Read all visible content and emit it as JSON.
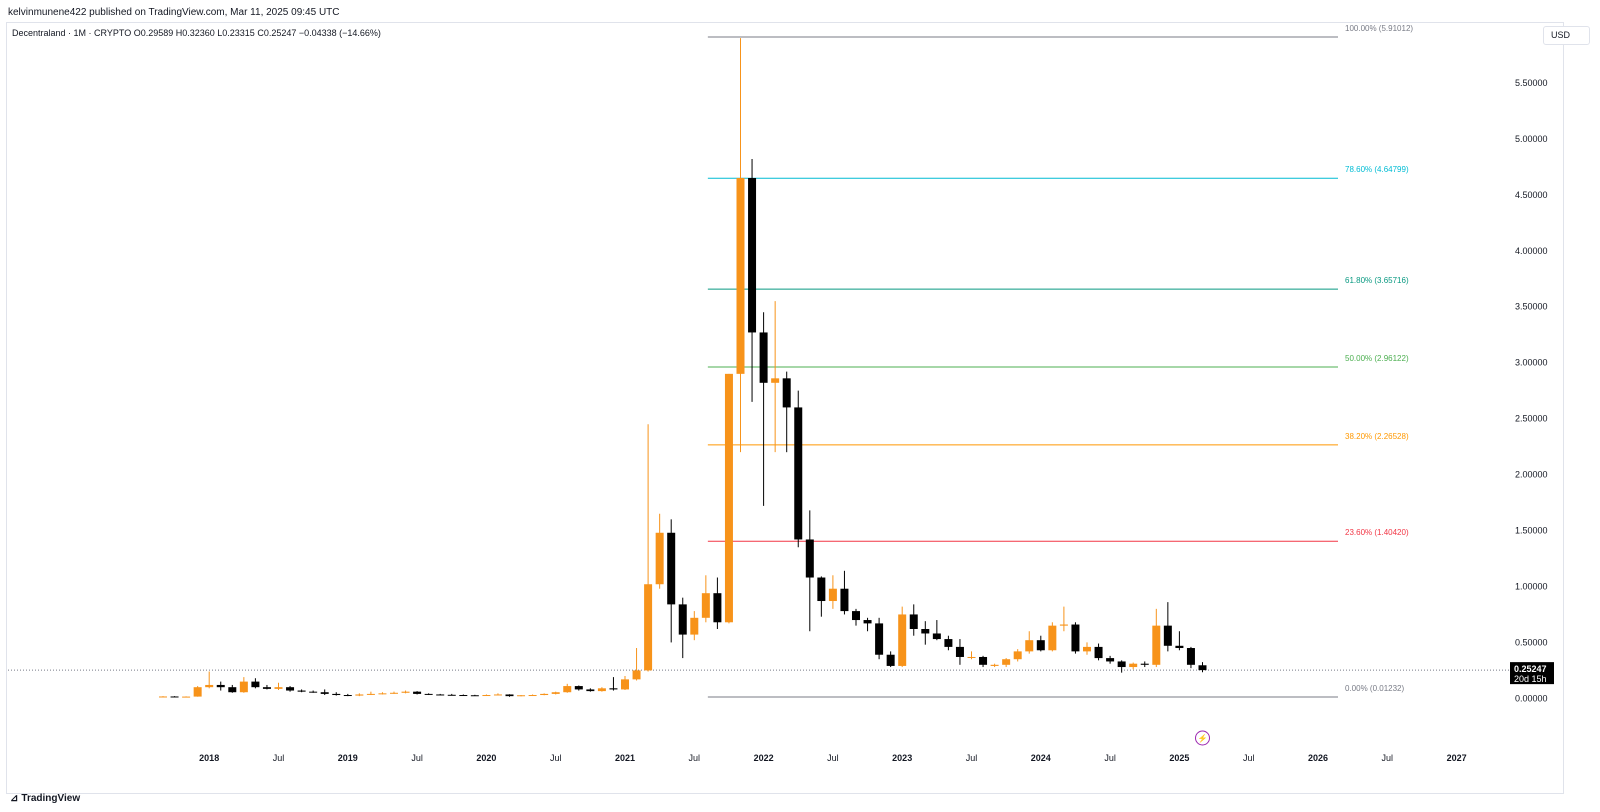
{
  "header": {
    "published_line": "kelvinmunene422 published on TradingView.com, Mar 11, 2025 09:45 UTC"
  },
  "symbol_bar": {
    "text": "Decentraland · 1M · CRYPTO  O0.29589  H0.32360  L0.23315  C0.25247  −0.04338 (−14.66%)"
  },
  "currency_button": "USD",
  "footer": {
    "brand": "TradingView",
    "logo_glyph": "⊿"
  },
  "price_tag": {
    "price": "0.25247",
    "countdown": "20d 15h"
  },
  "colors": {
    "up": "#f7931a",
    "down": "#000000",
    "fib_100": "#787b86",
    "fib_786": "#00bcd4",
    "fib_618": "#089981",
    "fib_50": "#4caf50",
    "fib_382": "#ff9800",
    "fib_236": "#f23645",
    "fib_0": "#787b86"
  },
  "chart_data": {
    "type": "candlestick",
    "title": "Decentraland · 1M · CRYPTO",
    "ylim": [
      -0.35,
      6.0
    ],
    "y_ticks": [
      "0.00000",
      "0.50000",
      "1.00000",
      "1.50000",
      "2.00000",
      "2.50000",
      "3.00000",
      "3.50000",
      "4.00000",
      "4.50000",
      "5.00000",
      "5.50000"
    ],
    "x_ticks": [
      "2018",
      "Jul",
      "2019",
      "Jul",
      "2020",
      "Jul",
      "2021",
      "Jul",
      "2022",
      "Jul",
      "2023",
      "Jul",
      "2024",
      "Jul",
      "2025",
      "Jul",
      "2026",
      "Jul",
      "2027"
    ],
    "x_start": "2017-09",
    "series": [
      {
        "candles": [
          {
            "t": "2017-09",
            "o": 0.015,
            "h": 0.02,
            "l": 0.01,
            "c": 0.017
          },
          {
            "t": "2017-10",
            "o": 0.017,
            "h": 0.02,
            "l": 0.012,
            "c": 0.014
          },
          {
            "t": "2017-11",
            "o": 0.014,
            "h": 0.018,
            "l": 0.012,
            "c": 0.016
          },
          {
            "t": "2017-12",
            "o": 0.016,
            "h": 0.11,
            "l": 0.015,
            "c": 0.1
          },
          {
            "t": "2018-01",
            "o": 0.1,
            "h": 0.24,
            "l": 0.09,
            "c": 0.12
          },
          {
            "t": "2018-02",
            "o": 0.12,
            "h": 0.15,
            "l": 0.07,
            "c": 0.1
          },
          {
            "t": "2018-03",
            "o": 0.1,
            "h": 0.12,
            "l": 0.05,
            "c": 0.055
          },
          {
            "t": "2018-04",
            "o": 0.055,
            "h": 0.19,
            "l": 0.05,
            "c": 0.15
          },
          {
            "t": "2018-05",
            "o": 0.15,
            "h": 0.18,
            "l": 0.09,
            "c": 0.1
          },
          {
            "t": "2018-06",
            "o": 0.1,
            "h": 0.12,
            "l": 0.08,
            "c": 0.085
          },
          {
            "t": "2018-07",
            "o": 0.085,
            "h": 0.14,
            "l": 0.075,
            "c": 0.1
          },
          {
            "t": "2018-08",
            "o": 0.1,
            "h": 0.11,
            "l": 0.06,
            "c": 0.07
          },
          {
            "t": "2018-09",
            "o": 0.07,
            "h": 0.08,
            "l": 0.055,
            "c": 0.06
          },
          {
            "t": "2018-10",
            "o": 0.06,
            "h": 0.07,
            "l": 0.05,
            "c": 0.055
          },
          {
            "t": "2018-11",
            "o": 0.055,
            "h": 0.08,
            "l": 0.03,
            "c": 0.04
          },
          {
            "t": "2018-12",
            "o": 0.04,
            "h": 0.055,
            "l": 0.025,
            "c": 0.03
          },
          {
            "t": "2019-01",
            "o": 0.03,
            "h": 0.04,
            "l": 0.02,
            "c": 0.025
          },
          {
            "t": "2019-02",
            "o": 0.025,
            "h": 0.045,
            "l": 0.02,
            "c": 0.035
          },
          {
            "t": "2019-03",
            "o": 0.035,
            "h": 0.06,
            "l": 0.03,
            "c": 0.04
          },
          {
            "t": "2019-04",
            "o": 0.04,
            "h": 0.055,
            "l": 0.035,
            "c": 0.045
          },
          {
            "t": "2019-05",
            "o": 0.045,
            "h": 0.06,
            "l": 0.04,
            "c": 0.05
          },
          {
            "t": "2019-06",
            "o": 0.05,
            "h": 0.07,
            "l": 0.045,
            "c": 0.06
          },
          {
            "t": "2019-07",
            "o": 0.06,
            "h": 0.065,
            "l": 0.035,
            "c": 0.04
          },
          {
            "t": "2019-08",
            "o": 0.04,
            "h": 0.045,
            "l": 0.03,
            "c": 0.035
          },
          {
            "t": "2019-09",
            "o": 0.035,
            "h": 0.04,
            "l": 0.03,
            "c": 0.032
          },
          {
            "t": "2019-10",
            "o": 0.032,
            "h": 0.04,
            "l": 0.028,
            "c": 0.03
          },
          {
            "t": "2019-11",
            "o": 0.03,
            "h": 0.035,
            "l": 0.025,
            "c": 0.028
          },
          {
            "t": "2019-12",
            "o": 0.028,
            "h": 0.032,
            "l": 0.022,
            "c": 0.025
          },
          {
            "t": "2020-01",
            "o": 0.025,
            "h": 0.035,
            "l": 0.022,
            "c": 0.03
          },
          {
            "t": "2020-02",
            "o": 0.03,
            "h": 0.045,
            "l": 0.028,
            "c": 0.035
          },
          {
            "t": "2020-03",
            "o": 0.035,
            "h": 0.037,
            "l": 0.015,
            "c": 0.02
          },
          {
            "t": "2020-04",
            "o": 0.02,
            "h": 0.03,
            "l": 0.018,
            "c": 0.028
          },
          {
            "t": "2020-05",
            "o": 0.028,
            "h": 0.035,
            "l": 0.025,
            "c": 0.03
          },
          {
            "t": "2020-06",
            "o": 0.03,
            "h": 0.045,
            "l": 0.028,
            "c": 0.04
          },
          {
            "t": "2020-07",
            "o": 0.04,
            "h": 0.06,
            "l": 0.035,
            "c": 0.055
          },
          {
            "t": "2020-08",
            "o": 0.055,
            "h": 0.13,
            "l": 0.05,
            "c": 0.11
          },
          {
            "t": "2020-09",
            "o": 0.11,
            "h": 0.115,
            "l": 0.07,
            "c": 0.08
          },
          {
            "t": "2020-10",
            "o": 0.08,
            "h": 0.09,
            "l": 0.06,
            "c": 0.065
          },
          {
            "t": "2020-11",
            "o": 0.065,
            "h": 0.1,
            "l": 0.06,
            "c": 0.09
          },
          {
            "t": "2020-12",
            "o": 0.09,
            "h": 0.19,
            "l": 0.07,
            "c": 0.08
          },
          {
            "t": "2021-01",
            "o": 0.08,
            "h": 0.2,
            "l": 0.075,
            "c": 0.17
          },
          {
            "t": "2021-02",
            "o": 0.17,
            "h": 0.45,
            "l": 0.16,
            "c": 0.25
          },
          {
            "t": "2021-03",
            "o": 0.25,
            "h": 2.45,
            "l": 0.24,
            "c": 1.02
          },
          {
            "t": "2021-04",
            "o": 1.02,
            "h": 1.65,
            "l": 0.98,
            "c": 1.48
          },
          {
            "t": "2021-05",
            "o": 1.48,
            "h": 1.6,
            "l": 0.5,
            "c": 0.84
          },
          {
            "t": "2021-06",
            "o": 0.84,
            "h": 0.9,
            "l": 0.36,
            "c": 0.57
          },
          {
            "t": "2021-07",
            "o": 0.57,
            "h": 0.78,
            "l": 0.52,
            "c": 0.72
          },
          {
            "t": "2021-08",
            "o": 0.72,
            "h": 1.1,
            "l": 0.68,
            "c": 0.94
          },
          {
            "t": "2021-09",
            "o": 0.94,
            "h": 1.08,
            "l": 0.62,
            "c": 0.68
          },
          {
            "t": "2021-10",
            "o": 0.68,
            "h": 2.9,
            "l": 0.67,
            "c": 2.9
          },
          {
            "t": "2021-11",
            "o": 2.9,
            "h": 5.9,
            "l": 2.2,
            "c": 4.65
          },
          {
            "t": "2021-12",
            "o": 4.65,
            "h": 4.82,
            "l": 2.65,
            "c": 3.27
          },
          {
            "t": "2022-01",
            "o": 3.27,
            "h": 3.45,
            "l": 1.72,
            "c": 2.82
          },
          {
            "t": "2022-02",
            "o": 2.82,
            "h": 3.55,
            "l": 2.2,
            "c": 2.86
          },
          {
            "t": "2022-03",
            "o": 2.86,
            "h": 2.92,
            "l": 2.2,
            "c": 2.6
          },
          {
            "t": "2022-04",
            "o": 2.6,
            "h": 2.75,
            "l": 1.35,
            "c": 1.42
          },
          {
            "t": "2022-05",
            "o": 1.42,
            "h": 1.68,
            "l": 0.6,
            "c": 1.08
          },
          {
            "t": "2022-06",
            "o": 1.08,
            "h": 1.09,
            "l": 0.73,
            "c": 0.87
          },
          {
            "t": "2022-07",
            "o": 0.87,
            "h": 1.1,
            "l": 0.8,
            "c": 0.98
          },
          {
            "t": "2022-08",
            "o": 0.98,
            "h": 1.14,
            "l": 0.75,
            "c": 0.78
          },
          {
            "t": "2022-09",
            "o": 0.78,
            "h": 0.8,
            "l": 0.65,
            "c": 0.7
          },
          {
            "t": "2022-10",
            "o": 0.7,
            "h": 0.72,
            "l": 0.6,
            "c": 0.67
          },
          {
            "t": "2022-11",
            "o": 0.67,
            "h": 0.72,
            "l": 0.35,
            "c": 0.39
          },
          {
            "t": "2022-12",
            "o": 0.39,
            "h": 0.42,
            "l": 0.28,
            "c": 0.29
          },
          {
            "t": "2023-01",
            "o": 0.29,
            "h": 0.82,
            "l": 0.28,
            "c": 0.75
          },
          {
            "t": "2023-02",
            "o": 0.75,
            "h": 0.84,
            "l": 0.56,
            "c": 0.62
          },
          {
            "t": "2023-03",
            "o": 0.62,
            "h": 0.69,
            "l": 0.48,
            "c": 0.58
          },
          {
            "t": "2023-04",
            "o": 0.58,
            "h": 0.7,
            "l": 0.52,
            "c": 0.53
          },
          {
            "t": "2023-05",
            "o": 0.53,
            "h": 0.56,
            "l": 0.43,
            "c": 0.46
          },
          {
            "t": "2023-06",
            "o": 0.46,
            "h": 0.53,
            "l": 0.3,
            "c": 0.37
          },
          {
            "t": "2023-07",
            "o": 0.37,
            "h": 0.42,
            "l": 0.35,
            "c": 0.37
          },
          {
            "t": "2023-08",
            "o": 0.37,
            "h": 0.38,
            "l": 0.28,
            "c": 0.3
          },
          {
            "t": "2023-09",
            "o": 0.29,
            "h": 0.31,
            "l": 0.28,
            "c": 0.3
          },
          {
            "t": "2023-10",
            "o": 0.3,
            "h": 0.36,
            "l": 0.28,
            "c": 0.35
          },
          {
            "t": "2023-11",
            "o": 0.35,
            "h": 0.44,
            "l": 0.33,
            "c": 0.42
          },
          {
            "t": "2023-12",
            "o": 0.42,
            "h": 0.6,
            "l": 0.4,
            "c": 0.52
          },
          {
            "t": "2024-01",
            "o": 0.52,
            "h": 0.56,
            "l": 0.42,
            "c": 0.43
          },
          {
            "t": "2024-02",
            "o": 0.43,
            "h": 0.68,
            "l": 0.42,
            "c": 0.65
          },
          {
            "t": "2024-03",
            "o": 0.65,
            "h": 0.82,
            "l": 0.6,
            "c": 0.66
          },
          {
            "t": "2024-04",
            "o": 0.66,
            "h": 0.68,
            "l": 0.4,
            "c": 0.42
          },
          {
            "t": "2024-05",
            "o": 0.42,
            "h": 0.5,
            "l": 0.39,
            "c": 0.46
          },
          {
            "t": "2024-06",
            "o": 0.46,
            "h": 0.49,
            "l": 0.34,
            "c": 0.36
          },
          {
            "t": "2024-07",
            "o": 0.36,
            "h": 0.38,
            "l": 0.31,
            "c": 0.33
          },
          {
            "t": "2024-08",
            "o": 0.33,
            "h": 0.34,
            "l": 0.23,
            "c": 0.28
          },
          {
            "t": "2024-09",
            "o": 0.28,
            "h": 0.32,
            "l": 0.26,
            "c": 0.31
          },
          {
            "t": "2024-10",
            "o": 0.31,
            "h": 0.33,
            "l": 0.28,
            "c": 0.3
          },
          {
            "t": "2024-11",
            "o": 0.3,
            "h": 0.8,
            "l": 0.28,
            "c": 0.65
          },
          {
            "t": "2024-12",
            "o": 0.65,
            "h": 0.86,
            "l": 0.42,
            "c": 0.47
          },
          {
            "t": "2025-01",
            "o": 0.47,
            "h": 0.6,
            "l": 0.43,
            "c": 0.45
          },
          {
            "t": "2025-02",
            "o": 0.45,
            "h": 0.46,
            "l": 0.27,
            "c": 0.3
          },
          {
            "t": "2025-03",
            "o": 0.29589,
            "h": 0.3236,
            "l": 0.23315,
            "c": 0.25247
          }
        ]
      }
    ],
    "last_price": 0.25247,
    "fib_levels": [
      {
        "label": "100.00% (5.91012)",
        "value": 5.91012,
        "color_key": "fib_100"
      },
      {
        "label": "78.60% (4.64799)",
        "value": 4.64799,
        "color_key": "fib_786"
      },
      {
        "label": "61.80% (3.65716)",
        "value": 3.65716,
        "color_key": "fib_618"
      },
      {
        "label": "50.00% (2.96122)",
        "value": 2.96122,
        "color_key": "fib_50"
      },
      {
        "label": "38.20% (2.26528)",
        "value": 2.26528,
        "color_key": "fib_382"
      },
      {
        "label": "23.60% (1.40420)",
        "value": 1.4042,
        "color_key": "fib_236"
      },
      {
        "label": "0.00% (0.01232)",
        "value": 0.01232,
        "color_key": "fib_0"
      }
    ],
    "fib_start": "2021-08",
    "fib_end": "2026-01",
    "event_marker_date": "2025-03",
    "event_marker_glyph": "⚡"
  }
}
